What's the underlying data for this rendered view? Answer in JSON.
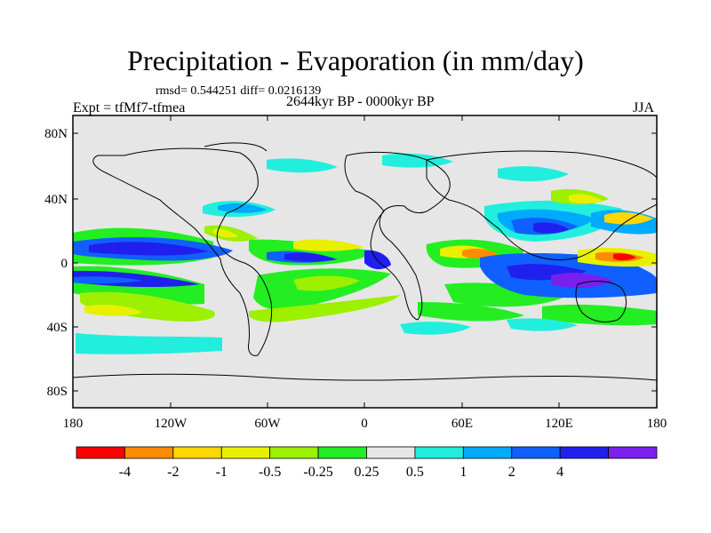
{
  "title": "Precipitation - Evaporation (in mm/day)",
  "stats": "rmsd= 0.544251 diff= 0.0216139",
  "left_label": "Expt = tfMf7-tfmea",
  "center_label": "2644kyr BP - 0000kyr BP",
  "right_label": "JJA",
  "map": {
    "lon_ticks": [
      "180",
      "120W",
      "60W",
      "0",
      "60E",
      "120E",
      "180"
    ],
    "lat_ticks": [
      "80N",
      "40N",
      "0",
      "40S",
      "80S"
    ],
    "background_color": "#e6e6e6"
  },
  "colorbar": {
    "labels": [
      "-4",
      "-2",
      "-1",
      "-0.5",
      "-0.25",
      "0.25",
      "0.5",
      "1",
      "2",
      "4"
    ],
    "colors": [
      "#ff0000",
      "#ff8c00",
      "#ffd700",
      "#e8f000",
      "#9cf000",
      "#22ee22",
      "#e6e6e6",
      "#22eedd",
      "#00aaff",
      "#1060ff",
      "#2020ee",
      "#7a20ee"
    ]
  }
}
